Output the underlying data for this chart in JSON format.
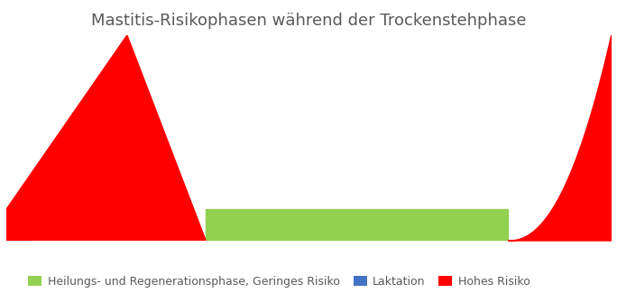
{
  "title": "Mastitis-Risikophasen während der Trockenstehphase",
  "title_fontsize": 13,
  "title_color": "#595959",
  "background_color": "#ffffff",
  "colors": {
    "red": "#ff0000",
    "green": "#92d050",
    "blue": "#4472c4"
  },
  "legend_labels": [
    "Heilungs- und Regenerationsphase, Geringes Risiko",
    "Laktation",
    "Hohes Risiko"
  ],
  "legend_colors": [
    "#92d050",
    "#4472c4",
    "#ff0000"
  ],
  "xlim": [
    0,
    100
  ],
  "ylim": [
    0,
    10
  ],
  "blue_x": [
    0,
    4
  ],
  "blue_y": [
    0,
    1.5
  ],
  "red1_points_x": [
    0,
    0,
    20,
    33,
    33
  ],
  "red1_points_y": [
    0,
    1.5,
    10,
    0,
    0
  ],
  "green_x": [
    33,
    83
  ],
  "green_y_low": 0,
  "green_y_high": 1.5,
  "red2_x_start": 83,
  "red2_x_end": 100,
  "red2_exponent": 2.2,
  "red2_height": 10,
  "figsize": [
    6.84,
    3.25
  ],
  "dpi": 100
}
